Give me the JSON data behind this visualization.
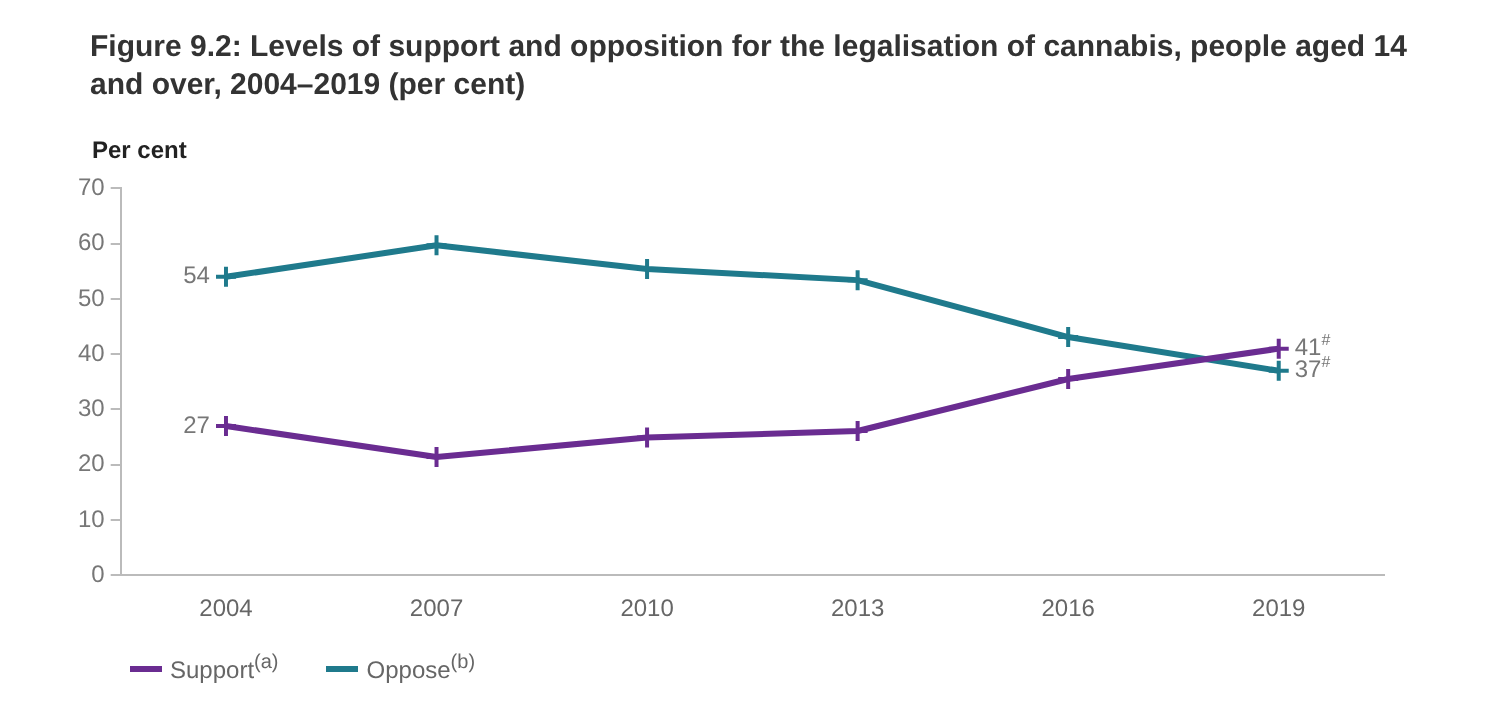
{
  "chart_data": {
    "type": "line",
    "title": "Figure 9.2: Levels of support and opposition for the legalisation of cannabis, people aged 14 and over, 2004–2019 (per cent)",
    "ylabel": "Per cent",
    "categories": [
      "2004",
      "2007",
      "2010",
      "2013",
      "2016",
      "2019"
    ],
    "series": [
      {
        "name": "Support$^{(a)}$",
        "color": "#6a2c91",
        "values": [
          27,
          21.4,
          24.9,
          26.1,
          35.5,
          41
        ],
        "value_labels": [
          "27",
          null,
          null,
          null,
          null,
          "41$^{#}$"
        ]
      },
      {
        "name": "Oppose$^{(b)}$",
        "color": "#1f7a8c",
        "values": [
          54,
          59.7,
          55.4,
          53.4,
          43.1,
          37
        ],
        "value_labels": [
          "54",
          null,
          null,
          null,
          null,
          "37$^{#}$"
        ]
      }
    ],
    "ylim": [
      0,
      70
    ],
    "yticks": [
      0,
      10,
      20,
      30,
      40,
      50,
      60,
      70
    ],
    "grid": false,
    "legend": "bottom left",
    "marker": "cross",
    "line_style": "solid"
  }
}
